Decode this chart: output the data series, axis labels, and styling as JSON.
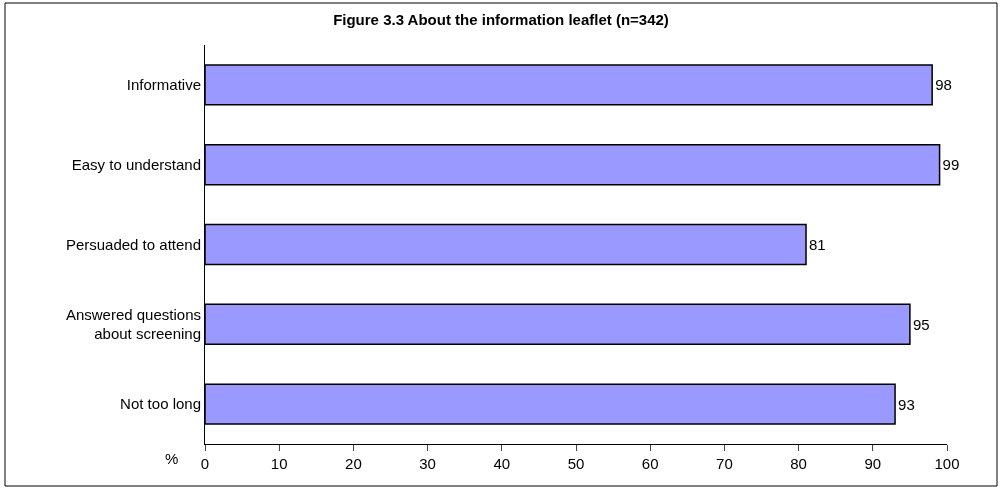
{
  "chart_data": {
    "type": "bar",
    "orientation": "horizontal",
    "title": "Figure 3.3 About the information leaflet (n=342)",
    "xlabel": "%",
    "categories": [
      "Informative",
      "Easy to understand",
      "Persuaded to attend",
      "Answered questions about screening",
      "Not too long"
    ],
    "values": [
      98,
      99,
      81,
      95,
      93
    ],
    "color": "#9999ff",
    "data_labels": true,
    "xlim": [
      0,
      100
    ],
    "xticks": [
      0,
      10,
      20,
      30,
      40,
      50,
      60,
      70,
      80,
      90,
      100
    ],
    "grid": false,
    "legend": false
  }
}
